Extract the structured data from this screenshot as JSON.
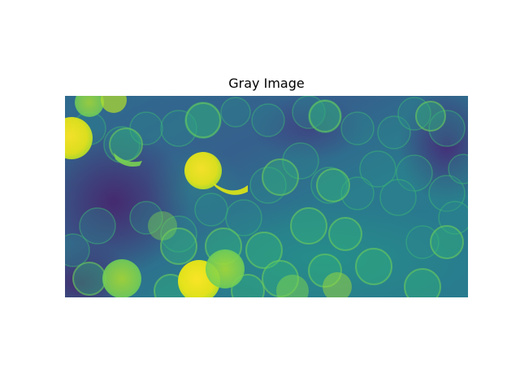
{
  "figure": {
    "title": "Gray Image",
    "colormap": "viridis",
    "colors": {
      "background": "#ffffff",
      "low": "#440154",
      "dark": "#3b4f8a",
      "mid": "#21918c",
      "light": "#5ec962",
      "high": "#fde725"
    }
  }
}
